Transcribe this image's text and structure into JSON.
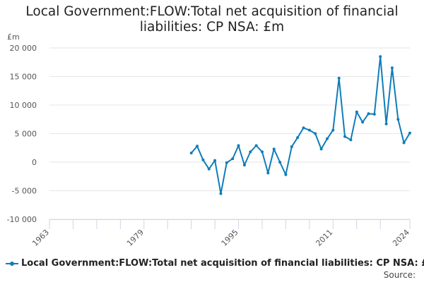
{
  "chart_data": {
    "type": "line",
    "title": "Local Government:FLOW:Total net acquisition of financial liabilities: CP NSA: £m",
    "ylabel": "£m",
    "ylim": [
      -10000,
      20000
    ],
    "yticks": [
      20000,
      15000,
      10000,
      5000,
      0,
      -5000,
      -10000
    ],
    "ytick_labels": [
      "20 000",
      "15 000",
      "10 000",
      "5 000",
      "0",
      "-5 000",
      "-10 000"
    ],
    "xlim": [
      1963,
      2024
    ],
    "xticks": [
      1963,
      1979,
      1995,
      2011,
      2024
    ],
    "x_minor_ticks": [
      1967,
      1971,
      1975,
      1983,
      1987,
      1991,
      1999,
      2003,
      2007,
      2015,
      2019
    ],
    "grid": true,
    "legend_position": "bottom",
    "color": "#0f7dba",
    "series": [
      {
        "name": "Local Government:FLOW:Total net acquisition of financial liabilities: CP NSA: £m",
        "x": [
          1987,
          1988,
          1989,
          1990,
          1991,
          1992,
          1993,
          1994,
          1995,
          1996,
          1997,
          1998,
          1999,
          2000,
          2001,
          2002,
          2003,
          2004,
          2005,
          2006,
          2007,
          2008,
          2009,
          2010,
          2011,
          2012,
          2013,
          2014,
          2015,
          2016,
          2017,
          2018,
          2019,
          2020,
          2021,
          2022,
          2023,
          2024
        ],
        "values": [
          1600,
          2800,
          400,
          -1200,
          300,
          -5500,
          -100,
          600,
          2900,
          -500,
          1800,
          2900,
          1800,
          -1900,
          2300,
          0,
          -2200,
          2700,
          4300,
          6000,
          5600,
          5000,
          2300,
          4100,
          5600,
          14700,
          4500,
          3900,
          8800,
          7000,
          8500,
          8400,
          18500,
          6700,
          16500,
          7500,
          3400,
          5100
        ]
      }
    ]
  },
  "legend": {
    "label": "Local Government:FLOW:Total net acquisition of financial liabilities: CP NSA: £m"
  },
  "source_label": "Source:"
}
